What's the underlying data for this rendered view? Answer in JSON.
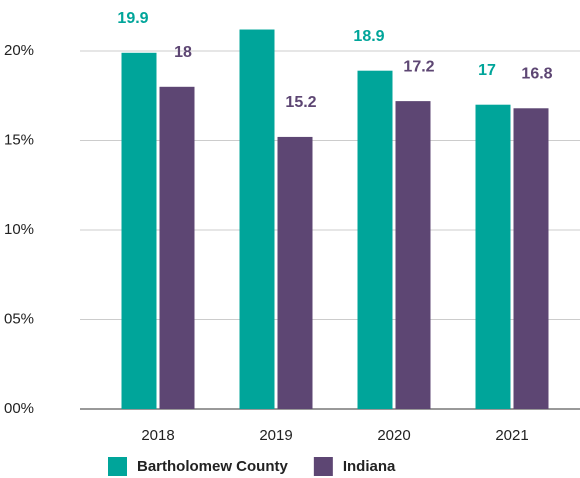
{
  "chart_data": {
    "type": "bar",
    "categories": [
      "2018",
      "2019",
      "2020",
      "2021"
    ],
    "series": [
      {
        "name": "Bartholomew County",
        "color": "#00a59a",
        "values": [
          19.9,
          21.2,
          18.9,
          17
        ]
      },
      {
        "name": "Indiana",
        "color": "#5d4673",
        "values": [
          18,
          15.2,
          17.2,
          16.8
        ]
      }
    ],
    "ylim": [
      0,
      22
    ],
    "yticks": [
      {
        "value": 0,
        "label": "00%"
      },
      {
        "value": 5,
        "label": "05%"
      },
      {
        "value": 10,
        "label": "10%"
      },
      {
        "value": 15,
        "label": "15%"
      },
      {
        "value": 20,
        "label": "20%"
      }
    ],
    "grid": true,
    "legend": "bottom"
  }
}
